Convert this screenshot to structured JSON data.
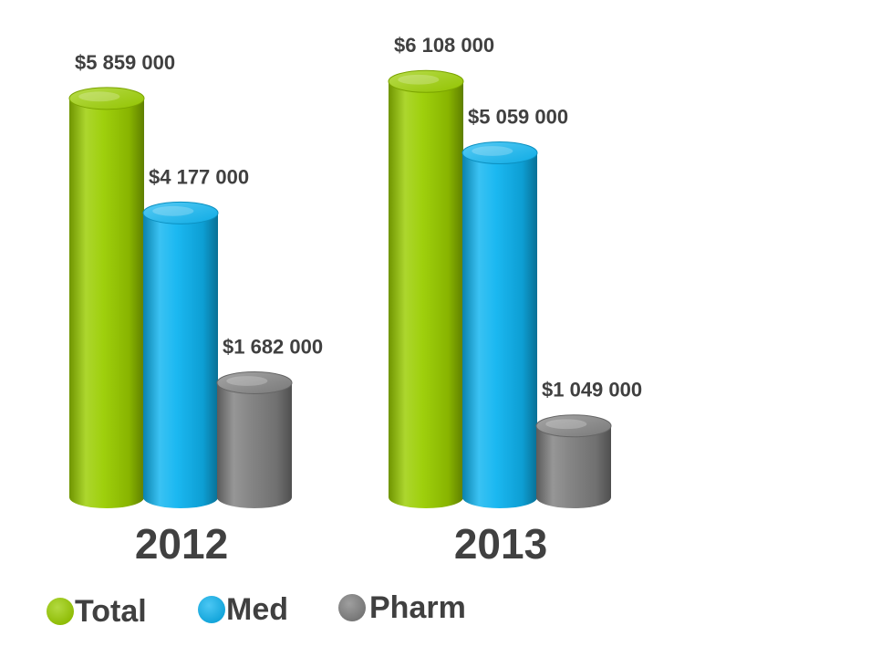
{
  "chart_data": {
    "type": "bar",
    "categories": [
      "2012",
      "2013"
    ],
    "series": [
      {
        "name": "Total",
        "color": "#9ACD00",
        "values": [
          5859000,
          6108000
        ],
        "labels": [
          "$5 859 000",
          "$6 108 000"
        ]
      },
      {
        "name": "Med",
        "color": "#0FB4F0",
        "values": [
          4177000,
          5059000
        ],
        "labels": [
          "$4 177 000",
          "$5 059 000"
        ]
      },
      {
        "name": "Pharm",
        "color": "#7F7F7F",
        "values": [
          1682000,
          1049000
        ],
        "labels": [
          "$1 682 000",
          "$1 049 000"
        ]
      }
    ],
    "ylim": [
      0,
      6500000
    ],
    "grid": false,
    "legend_position": "bottom-left",
    "title": "",
    "xlabel": "",
    "ylabel": "",
    "style": "3d-cylinder"
  }
}
